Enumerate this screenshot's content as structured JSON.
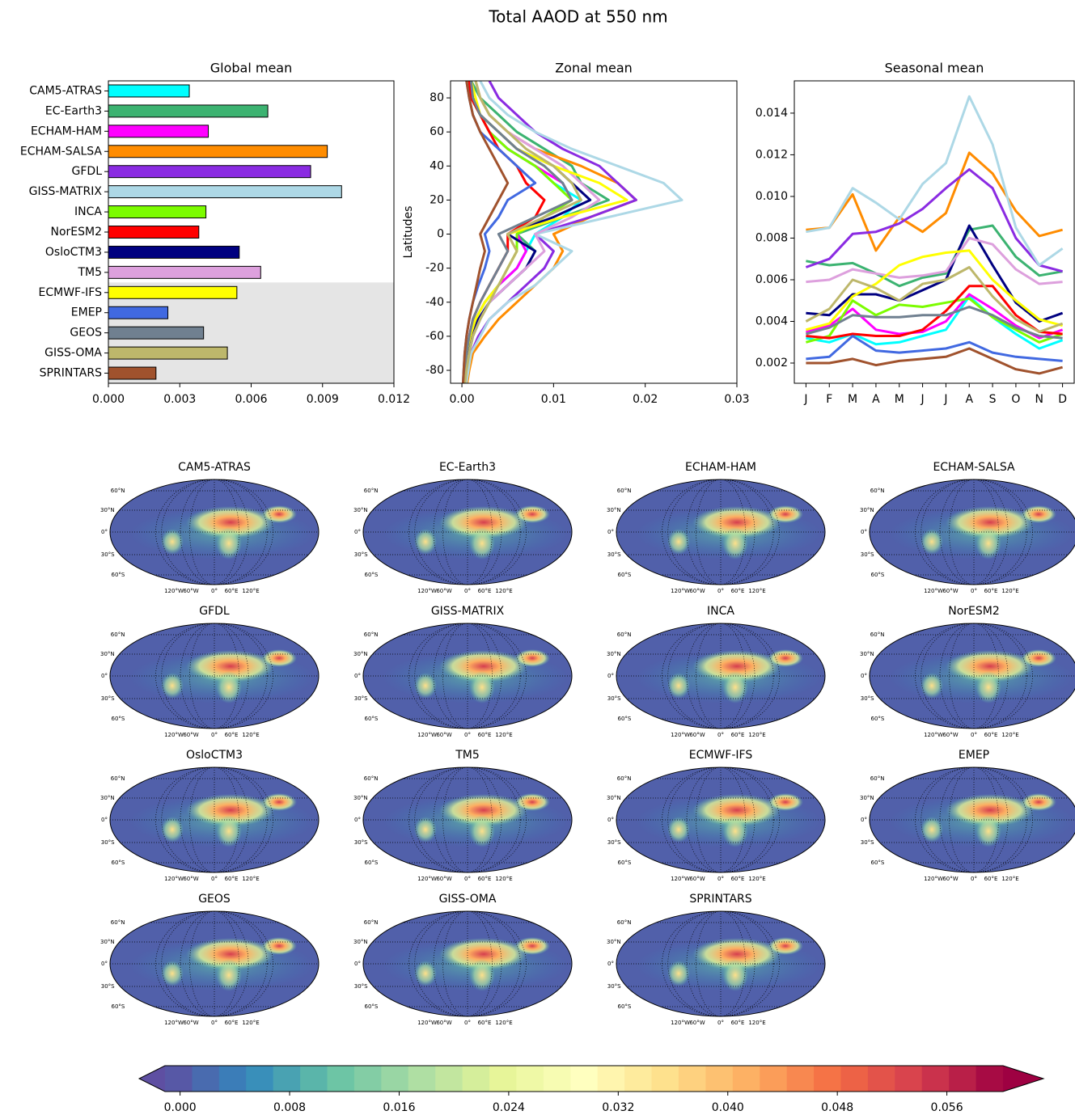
{
  "title": "Total AAOD at 550 nm",
  "chart_data": [
    {
      "type": "bar",
      "title": "Global mean",
      "categories": [
        "CAM5-ATRAS",
        "EC-Earth3",
        "ECHAM-HAM",
        "ECHAM-SALSA",
        "GFDL",
        "GISS-MATRIX",
        "INCA",
        "NorESM2",
        "OsloCTM3",
        "TM5",
        "ECMWF-IFS",
        "EMEP",
        "GEOS",
        "GISS-OMA",
        "SPRINTARS"
      ],
      "values": [
        0.0034,
        0.0067,
        0.0042,
        0.0092,
        0.0085,
        0.0098,
        0.0041,
        0.0038,
        0.0055,
        0.0064,
        0.0054,
        0.0025,
        0.004,
        0.005,
        0.002
      ],
      "colors": [
        "#00ffff",
        "#3cb371",
        "#ff00ff",
        "#ff8c00",
        "#8a2be2",
        "#add8e6",
        "#7cfc00",
        "#ff0000",
        "#000080",
        "#dda0dd",
        "#ffff00",
        "#4169e1",
        "#708090",
        "#bdb76b",
        "#a0522d"
      ],
      "xlim": [
        0,
        0.012
      ],
      "xticks": [
        {
          "value": 0,
          "label": "0.000"
        },
        0.003,
        0.006,
        0.009,
        0.012
      ]
    },
    {
      "type": "line",
      "title": "Zonal mean",
      "ylabel": "Latitudes",
      "y": [
        -90,
        -80,
        -70,
        -60,
        -50,
        -40,
        -30,
        -20,
        -10,
        0,
        10,
        20,
        30,
        40,
        50,
        60,
        70,
        80,
        90
      ],
      "series": [
        {
          "color": "#00ffff",
          "values": [
            0.0002,
            0.0003,
            0.0005,
            0.0008,
            0.0015,
            0.0025,
            0.004,
            0.006,
            0.007,
            0.008,
            0.011,
            0.013,
            0.01,
            0.008,
            0.005,
            0.003,
            0.002,
            0.001,
            0.0008
          ]
        },
        {
          "color": "#3cb371",
          "values": [
            0.0003,
            0.0005,
            0.0008,
            0.0012,
            0.002,
            0.003,
            0.005,
            0.007,
            0.008,
            0.006,
            0.011,
            0.016,
            0.013,
            0.012,
            0.009,
            0.006,
            0.004,
            0.002,
            0.001
          ]
        },
        {
          "color": "#ff00ff",
          "values": [
            0.0002,
            0.0004,
            0.0006,
            0.0009,
            0.0015,
            0.0025,
            0.004,
            0.006,
            0.007,
            0.006,
            0.009,
            0.012,
            0.011,
            0.008,
            0.005,
            0.003,
            0.002,
            0.0012,
            0.001
          ]
        },
        {
          "color": "#ff8c00",
          "values": [
            0.0005,
            0.0008,
            0.0012,
            0.0025,
            0.004,
            0.006,
            0.008,
            0.01,
            0.011,
            0.01,
            0.014,
            0.019,
            0.017,
            0.013,
            0.008,
            0.005,
            0.003,
            0.002,
            0.0015
          ]
        },
        {
          "color": "#8a2be2",
          "values": [
            0.0003,
            0.0005,
            0.001,
            0.0018,
            0.003,
            0.005,
            0.007,
            0.009,
            0.01,
            0.008,
            0.014,
            0.019,
            0.017,
            0.015,
            0.011,
            0.008,
            0.006,
            0.004,
            0.003
          ]
        },
        {
          "color": "#add8e6",
          "values": [
            0.0004,
            0.0007,
            0.001,
            0.002,
            0.003,
            0.005,
            0.008,
            0.01,
            0.012,
            0.008,
            0.016,
            0.024,
            0.022,
            0.017,
            0.012,
            0.008,
            0.005,
            0.003,
            0.002
          ]
        },
        {
          "color": "#7cfc00",
          "values": [
            0.0002,
            0.0003,
            0.0005,
            0.0009,
            0.0015,
            0.0025,
            0.004,
            0.005,
            0.006,
            0.006,
            0.009,
            0.012,
            0.01,
            0.008,
            0.005,
            0.003,
            0.002,
            0.001,
            0.0008
          ]
        },
        {
          "color": "#ff0000",
          "values": [
            0.0002,
            0.0003,
            0.0005,
            0.0008,
            0.0012,
            0.002,
            0.003,
            0.004,
            0.005,
            0.005,
            0.008,
            0.009,
            0.007,
            0.006,
            0.004,
            0.003,
            0.002,
            0.001,
            0.0008
          ]
        },
        {
          "color": "#000080",
          "values": [
            0.0002,
            0.0003,
            0.0006,
            0.001,
            0.0018,
            0.003,
            0.005,
            0.007,
            0.008,
            0.005,
            0.01,
            0.014,
            0.012,
            0.01,
            0.006,
            0.004,
            0.002,
            0.0012,
            0.001
          ]
        },
        {
          "color": "#dda0dd",
          "values": [
            0.0003,
            0.0005,
            0.0008,
            0.0012,
            0.002,
            0.003,
            0.005,
            0.007,
            0.009,
            0.008,
            0.012,
            0.015,
            0.013,
            0.011,
            0.008,
            0.005,
            0.003,
            0.002,
            0.0015
          ]
        },
        {
          "color": "#ffff00",
          "values": [
            0.0002,
            0.0003,
            0.0005,
            0.0009,
            0.0015,
            0.0025,
            0.004,
            0.005,
            0.006,
            0.005,
            0.011,
            0.018,
            0.015,
            0.01,
            0.006,
            0.004,
            0.002,
            0.0015,
            0.001
          ]
        },
        {
          "color": "#4169e1",
          "values": [
            0.0001,
            0.0002,
            0.0003,
            0.0005,
            0.0008,
            0.0012,
            0.0018,
            0.0025,
            0.003,
            0.0025,
            0.004,
            0.005,
            0.008,
            0.006,
            0.004,
            0.002,
            0.0012,
            0.0008,
            0.0005
          ]
        },
        {
          "color": "#708090",
          "values": [
            0.0002,
            0.0003,
            0.0005,
            0.0008,
            0.0012,
            0.002,
            0.003,
            0.004,
            0.005,
            0.004,
            0.008,
            0.012,
            0.011,
            0.009,
            0.006,
            0.004,
            0.002,
            0.0012,
            0.001
          ]
        },
        {
          "color": "#bdb76b",
          "values": [
            0.0003,
            0.0005,
            0.0008,
            0.0012,
            0.002,
            0.003,
            0.004,
            0.005,
            0.006,
            0.005,
            0.009,
            0.013,
            0.012,
            0.01,
            0.007,
            0.005,
            0.003,
            0.002,
            0.0015
          ]
        },
        {
          "color": "#a0522d",
          "values": [
            0.0001,
            0.0002,
            0.0003,
            0.0005,
            0.0008,
            0.0012,
            0.0016,
            0.002,
            0.0025,
            0.002,
            0.003,
            0.004,
            0.005,
            0.004,
            0.003,
            0.002,
            0.0012,
            0.0008,
            0.0005
          ]
        }
      ],
      "xlim": [
        -0.00124,
        0.03
      ],
      "xticks": [
        {
          "value": 0,
          "label": "0.00"
        },
        0.01,
        0.02,
        0.03
      ],
      "ylim": [
        -87.6,
        90
      ],
      "yticks": [
        -80,
        -60,
        -40,
        -20,
        0,
        20,
        40,
        60,
        80
      ]
    },
    {
      "type": "line",
      "title": "Seasonal mean",
      "categories": [
        "J",
        "F",
        "M",
        "A",
        "M",
        "J",
        "J",
        "A",
        "S",
        "O",
        "N",
        "D"
      ],
      "series": [
        {
          "color": "#00ffff",
          "values": [
            0.0032,
            0.003,
            0.0034,
            0.0029,
            0.003,
            0.0033,
            0.0036,
            0.0052,
            0.0042,
            0.0034,
            0.0027,
            0.0031
          ]
        },
        {
          "color": "#3cb371",
          "values": [
            0.0069,
            0.0067,
            0.0068,
            0.0063,
            0.0057,
            0.0061,
            0.0063,
            0.0084,
            0.0086,
            0.0071,
            0.0062,
            0.0064
          ]
        },
        {
          "color": "#ff00ff",
          "values": [
            0.0035,
            0.0038,
            0.0046,
            0.0036,
            0.0034,
            0.0035,
            0.004,
            0.0053,
            0.0046,
            0.0038,
            0.0032,
            0.0036
          ]
        },
        {
          "color": "#ff8c00",
          "values": [
            0.0084,
            0.0085,
            0.0101,
            0.0074,
            0.009,
            0.0083,
            0.0092,
            0.0121,
            0.0111,
            0.0093,
            0.0081,
            0.0084
          ]
        },
        {
          "color": "#8a2be2",
          "values": [
            0.0066,
            0.007,
            0.0082,
            0.0083,
            0.0087,
            0.0094,
            0.0104,
            0.0113,
            0.0104,
            0.008,
            0.0067,
            0.0064
          ]
        },
        {
          "color": "#add8e6",
          "values": [
            0.0083,
            0.0085,
            0.0104,
            0.0097,
            0.0089,
            0.0106,
            0.0116,
            0.0148,
            0.0125,
            0.0085,
            0.0067,
            0.0075
          ]
        },
        {
          "color": "#7cfc00",
          "values": [
            0.003,
            0.0033,
            0.005,
            0.0043,
            0.0048,
            0.0047,
            0.0049,
            0.0051,
            0.0042,
            0.0036,
            0.003,
            0.0034
          ]
        },
        {
          "color": "#ff0000",
          "values": [
            0.0033,
            0.0032,
            0.0034,
            0.0033,
            0.0033,
            0.0036,
            0.0045,
            0.0057,
            0.0057,
            0.0043,
            0.0035,
            0.0034
          ]
        },
        {
          "color": "#000080",
          "values": [
            0.0044,
            0.0043,
            0.0053,
            0.0053,
            0.005,
            0.0055,
            0.006,
            0.0086,
            0.0067,
            0.0049,
            0.004,
            0.0044
          ]
        },
        {
          "color": "#dda0dd",
          "values": [
            0.0059,
            0.006,
            0.0065,
            0.0063,
            0.0061,
            0.0062,
            0.0064,
            0.008,
            0.0077,
            0.0065,
            0.0058,
            0.0059
          ]
        },
        {
          "color": "#ffff00",
          "values": [
            0.0036,
            0.0039,
            0.0052,
            0.0058,
            0.0067,
            0.0071,
            0.0073,
            0.0074,
            0.006,
            0.005,
            0.0041,
            0.0038
          ]
        },
        {
          "color": "#4169e1",
          "values": [
            0.0022,
            0.0023,
            0.0033,
            0.0026,
            0.0025,
            0.0026,
            0.0027,
            0.003,
            0.0025,
            0.0023,
            0.0022,
            0.0021
          ]
        },
        {
          "color": "#708090",
          "values": [
            0.0034,
            0.0037,
            0.0043,
            0.0042,
            0.0042,
            0.0043,
            0.0043,
            0.0047,
            0.0043,
            0.0037,
            0.0033,
            0.0032
          ]
        },
        {
          "color": "#bdb76b",
          "values": [
            0.004,
            0.0046,
            0.006,
            0.0056,
            0.005,
            0.0058,
            0.006,
            0.0066,
            0.0052,
            0.0041,
            0.0035,
            0.0039
          ]
        },
        {
          "color": "#a0522d",
          "values": [
            0.002,
            0.002,
            0.0022,
            0.0019,
            0.0021,
            0.0022,
            0.0023,
            0.0027,
            0.0022,
            0.0017,
            0.0015,
            0.0018
          ]
        }
      ],
      "ylim": [
        0.00103,
        0.01555
      ],
      "yticks": [
        0.002,
        0.004,
        0.006,
        0.008,
        {
          "value": 0.01,
          "label": "0.010"
        },
        0.012,
        0.014
      ]
    },
    {
      "type": "map",
      "titles": [
        "CAM5-ATRAS",
        "EC-Earth3",
        "ECHAM-HAM",
        "ECHAM-SALSA",
        "GFDL",
        "GISS-MATRIX",
        "INCA",
        "NorESM2",
        "OsloCTM3",
        "TM5",
        "ECMWF-IFS",
        "EMEP",
        "GEOS",
        "GISS-OMA",
        "SPRINTARS"
      ],
      "lat_labels": [
        "60°N",
        "30°N",
        "0°",
        "30°S",
        "60°S"
      ],
      "lon_labels": [
        "120°W",
        "60°W",
        "0°",
        "60°E",
        "120°E"
      ],
      "colorbar": {
        "cmap": "Spectral_r",
        "levels": 31,
        "extend": "both",
        "lim": [
          -0.0011,
          0.0601
        ],
        "ticks": [
          {
            "value": 0,
            "label": "0.000"
          },
          0.008,
          0.016,
          0.024,
          0.032,
          {
            "value": 0.04,
            "label": "0.040"
          },
          0.048,
          0.056
        ]
      }
    }
  ]
}
